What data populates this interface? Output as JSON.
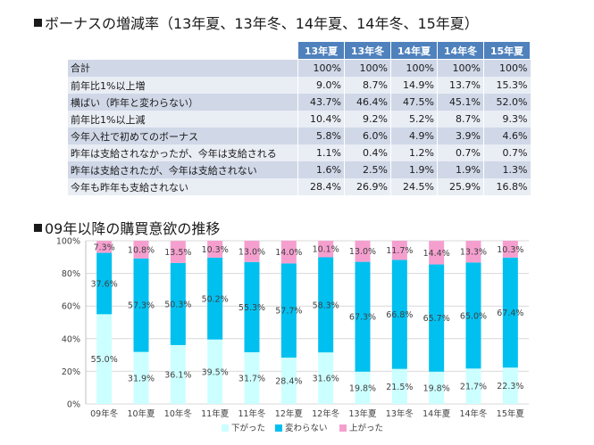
{
  "heading1": "ボーナスの増減率（13年夏、13年冬、14年夏、14年冬、15年夏）",
  "heading2": "09年以降の購買意欲の推移",
  "table": {
    "columns": [
      "13年夏",
      "13年冬",
      "14年夏",
      "14年冬",
      "15年夏"
    ],
    "rows": [
      {
        "label": "合計",
        "values": [
          "100%",
          "100%",
          "100%",
          "100%",
          "100%"
        ]
      },
      {
        "label": "前年比1%以上増",
        "values": [
          "9.0%",
          "8.7%",
          "14.9%",
          "13.7%",
          "15.3%"
        ]
      },
      {
        "label": "横ばい（昨年と変わらない）",
        "values": [
          "43.7%",
          "46.4%",
          "47.5%",
          "45.1%",
          "52.0%"
        ]
      },
      {
        "label": "前年比1%以上減",
        "values": [
          "10.4%",
          "9.2%",
          "5.2%",
          "8.7%",
          "9.3%"
        ]
      },
      {
        "label": "今年入社で初めてのボーナス",
        "values": [
          "5.8%",
          "6.0%",
          "4.9%",
          "3.9%",
          "4.6%"
        ]
      },
      {
        "label": "昨年は支給されなかったが、今年は支給される",
        "values": [
          "1.1%",
          "0.4%",
          "1.2%",
          "0.7%",
          "0.7%"
        ]
      },
      {
        "label": "昨年は支給されたが、今年は支給されない",
        "values": [
          "1.6%",
          "2.5%",
          "1.9%",
          "1.9%",
          "1.3%"
        ]
      },
      {
        "label": "今年も昨年も支給されない",
        "values": [
          "28.4%",
          "26.9%",
          "24.5%",
          "25.9%",
          "16.8%"
        ]
      }
    ]
  },
  "colors": {
    "header_bg": "#4f81bd",
    "row_odd": "#d0d8e8",
    "row_even": "#e9edf4",
    "down": "#ccffff",
    "same": "#00c0f0",
    "up": "#f59fcf"
  },
  "chart_data": {
    "type": "bar",
    "stacked": true,
    "categories": [
      "09年冬",
      "10年夏",
      "10年冬",
      "11年夏",
      "11年冬",
      "12年夏",
      "12年冬",
      "13年夏",
      "13年冬",
      "14年夏",
      "14年冬",
      "15年夏"
    ],
    "series": [
      {
        "name": "下がった",
        "color": "#ccffff",
        "values": [
          55.0,
          31.9,
          36.1,
          39.5,
          31.7,
          28.4,
          31.6,
          19.8,
          21.5,
          19.8,
          21.7,
          22.3
        ]
      },
      {
        "name": "変わらない",
        "color": "#00c0f0",
        "values": [
          37.6,
          57.3,
          50.3,
          50.2,
          55.3,
          57.7,
          58.3,
          67.3,
          66.8,
          65.7,
          65.0,
          67.4
        ]
      },
      {
        "name": "上がった",
        "color": "#f59fcf",
        "values": [
          7.3,
          10.8,
          13.5,
          10.3,
          13.0,
          14.0,
          10.1,
          13.0,
          11.7,
          14.4,
          13.3,
          10.3
        ]
      }
    ],
    "ylim": [
      0,
      100
    ],
    "yticks": [
      "0%",
      "20%",
      "40%",
      "60%",
      "80%",
      "100%"
    ],
    "grid": true,
    "legend": "bottom"
  }
}
